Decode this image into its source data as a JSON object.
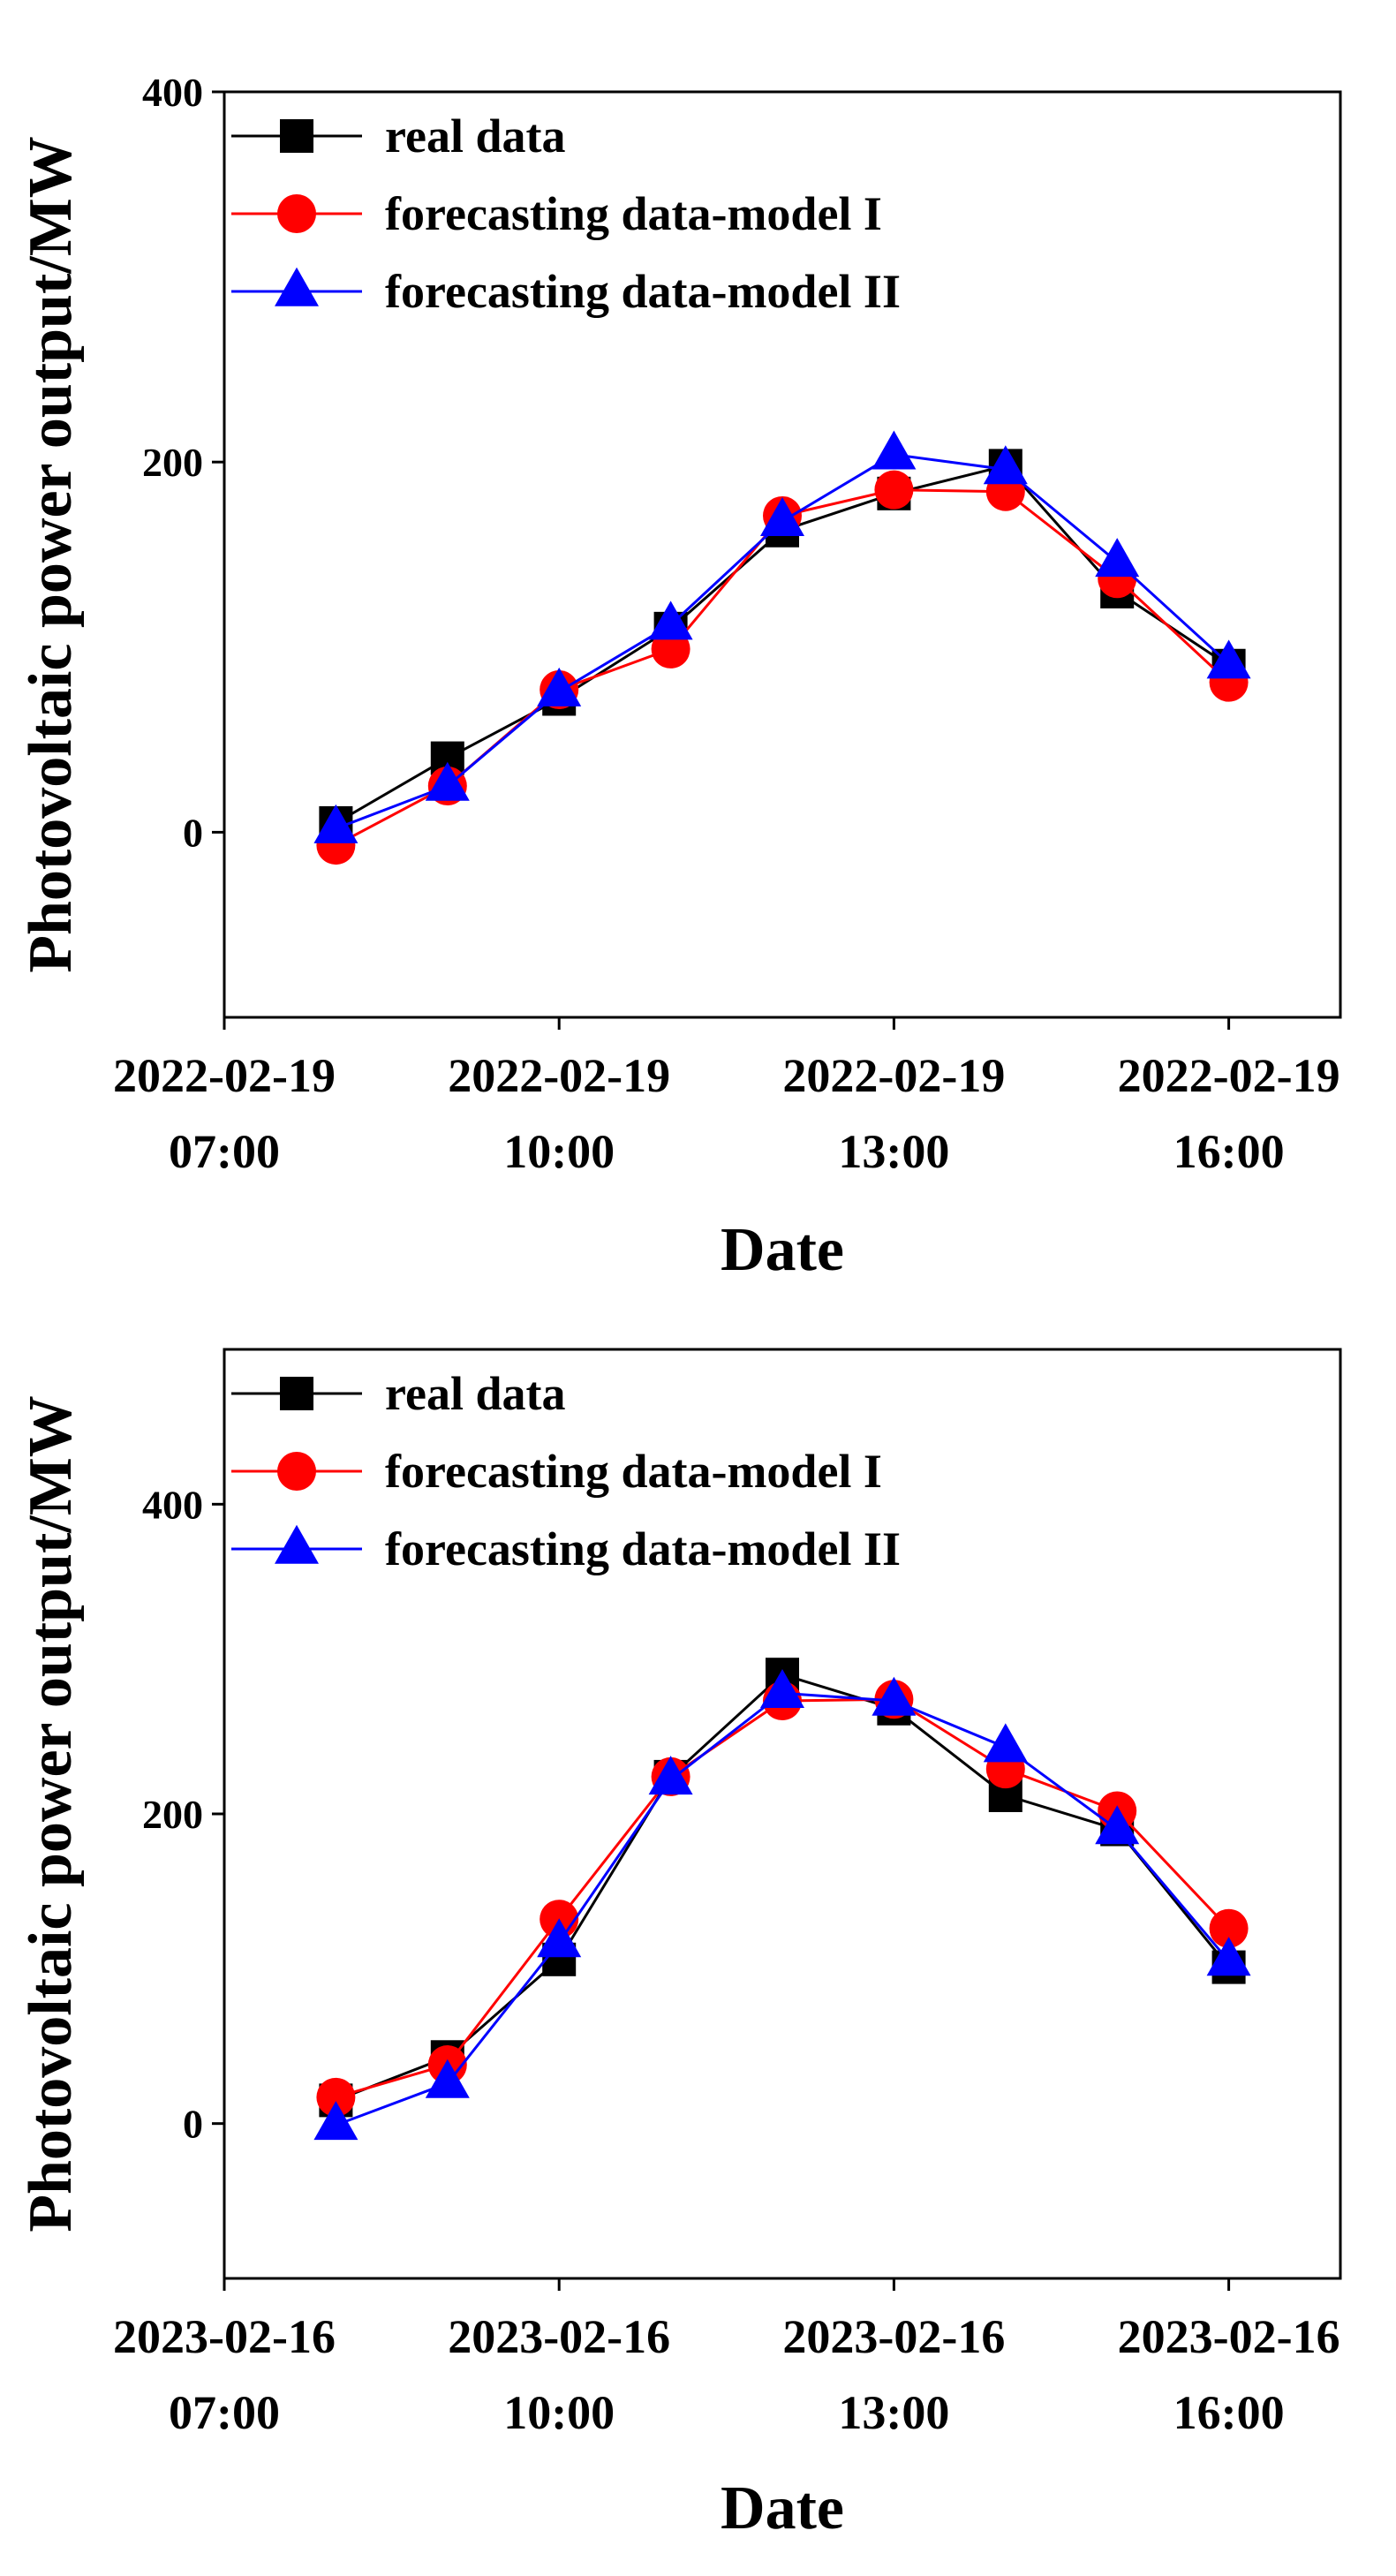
{
  "chart_data": [
    {
      "type": "line",
      "xlabel": "Date",
      "ylabel": "Photovoltaic power output/MW",
      "xlim": [
        7,
        17
      ],
      "ylim": [
        -100,
        400
      ],
      "yticks": [
        0,
        200,
        400
      ],
      "xticks": [
        {
          "x": 7,
          "date": "2022-02-19",
          "time": "07:00"
        },
        {
          "x": 10,
          "date": "2022-02-19",
          "time": "10:00"
        },
        {
          "x": 13,
          "date": "2022-02-19",
          "time": "13:00"
        },
        {
          "x": 16,
          "date": "2022-02-19",
          "time": "16:00"
        }
      ],
      "x": [
        8,
        9,
        10,
        11,
        12,
        13,
        14,
        15,
        16
      ],
      "series": [
        {
          "name": "real data",
          "color": "#000000",
          "marker": "square",
          "values": [
            5,
            40,
            72,
            110,
            163,
            183,
            198,
            130,
            90
          ]
        },
        {
          "name": "forecasting data-model I",
          "color": "#ff0000",
          "marker": "circle",
          "values": [
            -7,
            25,
            77,
            99,
            171,
            185,
            184,
            137,
            81
          ]
        },
        {
          "name": "forecasting data-model II",
          "color": "#0000ff",
          "marker": "triangle",
          "values": [
            2,
            25,
            76,
            112,
            168,
            204,
            196,
            146,
            91
          ]
        }
      ],
      "legend": "top-left"
    },
    {
      "type": "line",
      "xlabel": "Date",
      "ylabel": "Photovoltaic power output/MW",
      "xlim": [
        7,
        17
      ],
      "ylim": [
        -100,
        500
      ],
      "yticks": [
        0,
        200,
        400
      ],
      "xticks": [
        {
          "x": 7,
          "date": "2023-02-16",
          "time": "07:00"
        },
        {
          "x": 10,
          "date": "2023-02-16",
          "time": "10:00"
        },
        {
          "x": 13,
          "date": "2023-02-16",
          "time": "13:00"
        },
        {
          "x": 16,
          "date": "2023-02-16",
          "time": "16:00"
        }
      ],
      "x": [
        8,
        9,
        10,
        11,
        12,
        13,
        14,
        15,
        16
      ],
      "series": [
        {
          "name": "real data",
          "color": "#000000",
          "marker": "square",
          "values": [
            15,
            43,
            106,
            224,
            290,
            268,
            212,
            190,
            101
          ]
        },
        {
          "name": "forecasting data-model I",
          "color": "#ff0000",
          "marker": "circle",
          "values": [
            17,
            38,
            132,
            224,
            273,
            274,
            229,
            202,
            126
          ]
        },
        {
          "name": "forecasting data-model II",
          "color": "#0000ff",
          "marker": "triangle",
          "values": [
            -1,
            26,
            117,
            222,
            278,
            273,
            243,
            190,
            105
          ]
        }
      ],
      "legend": "top-left"
    }
  ]
}
